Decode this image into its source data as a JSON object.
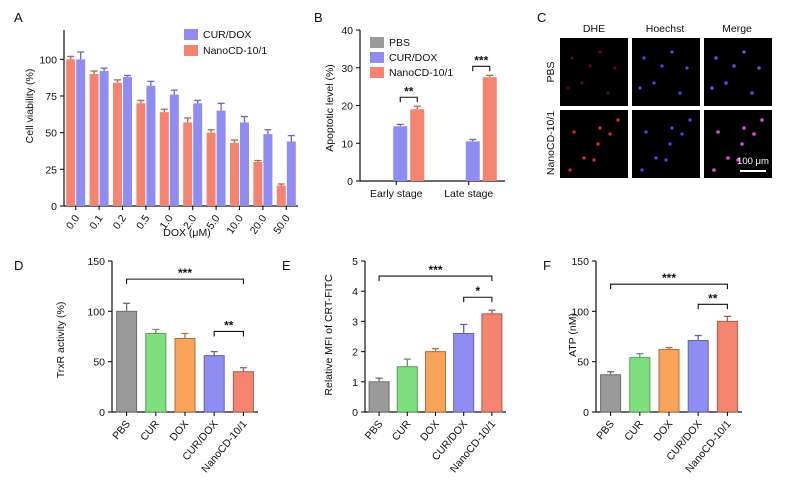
{
  "colors": {
    "purple": "#8f8cf2",
    "salmon": "#f4846f",
    "gray": "#9a9a9a",
    "green": "#7fe07f",
    "orange": "#f8a25a",
    "axis": "#111111"
  },
  "panel_letters": {
    "A": "A",
    "B": "B",
    "C": "C",
    "D": "D",
    "E": "E",
    "F": "F"
  },
  "chart_data": [
    {
      "id": "A",
      "type": "bar",
      "xlabel": "DOX (μM)",
      "ylabel": "Cell viability (%)",
      "ylim": [
        0,
        120
      ],
      "yticks": [
        "0",
        "25",
        "50",
        "75",
        "100"
      ],
      "categories": [
        "0.0",
        "0.1",
        "0.2",
        "0.5",
        "1.0",
        "2.0",
        "5.0",
        "10.0",
        "20.0",
        "50.0"
      ],
      "legend_position": "top-right",
      "series": [
        {
          "name": "CUR/DOX",
          "color_key": "purple",
          "values": [
            100,
            92,
            88,
            82,
            76,
            70,
            65,
            57,
            49,
            44
          ],
          "errors": [
            5,
            2,
            1,
            3,
            3,
            2,
            5,
            4,
            3,
            4
          ]
        },
        {
          "name": "NanoCD-10/1",
          "color_key": "salmon",
          "values": [
            100,
            90,
            84,
            70,
            64,
            57,
            50,
            43,
            30,
            14
          ],
          "errors": [
            2,
            2,
            2,
            2,
            2,
            3,
            2,
            2,
            1,
            1
          ]
        }
      ]
    },
    {
      "id": "B",
      "type": "bar",
      "xlabel": "",
      "ylabel": "Apoptotic level (%)",
      "ylim": [
        0,
        40
      ],
      "yticks": [
        "0",
        "10",
        "20",
        "30",
        "40"
      ],
      "categories": [
        "Early stage",
        "Late stage"
      ],
      "legend_position": "top-left",
      "series": [
        {
          "name": "PBS",
          "color_key": "gray",
          "values": [
            0.1,
            0.1
          ],
          "errors": [
            0,
            0
          ]
        },
        {
          "name": "CUR/DOX",
          "color_key": "purple",
          "values": [
            14.5,
            10.5
          ],
          "errors": [
            0.5,
            0.5
          ]
        },
        {
          "name": "NanoCD-10/1",
          "color_key": "salmon",
          "values": [
            19,
            27.5
          ],
          "errors": [
            0.8,
            0.5
          ]
        }
      ],
      "annotations": [
        "**",
        "***"
      ]
    },
    {
      "id": "D",
      "type": "bar",
      "xlabel": "",
      "ylabel": "TrxR activity (%)",
      "ylim": [
        0,
        150
      ],
      "yticks": [
        "0",
        "50",
        "100",
        "150"
      ],
      "categories": [
        "PBS",
        "CUR",
        "DOX",
        "CUR/DOX",
        "NanoCD-10/1"
      ],
      "series": [
        {
          "name": "",
          "values": [
            100,
            78,
            73,
            56,
            40
          ],
          "errors": [
            8,
            4,
            5,
            4,
            4
          ],
          "color_keys": [
            "gray",
            "green",
            "orange",
            "purple",
            "salmon"
          ]
        }
      ],
      "annotations": [
        "***",
        "**"
      ]
    },
    {
      "id": "E",
      "type": "bar",
      "xlabel": "",
      "ylabel": "Relative MFI of CRT-FITC",
      "ylim": [
        0,
        5
      ],
      "yticks": [
        "0",
        "1",
        "2",
        "3",
        "4",
        "5"
      ],
      "categories": [
        "PBS",
        "CUR",
        "DOX",
        "CUR/DOX",
        "NanoCD-10/1"
      ],
      "series": [
        {
          "name": "",
          "values": [
            1.0,
            1.5,
            2.0,
            2.6,
            3.25
          ],
          "errors": [
            0.12,
            0.25,
            0.1,
            0.3,
            0.12
          ],
          "color_keys": [
            "gray",
            "green",
            "orange",
            "purple",
            "salmon"
          ]
        }
      ],
      "annotations": [
        "***",
        "*"
      ]
    },
    {
      "id": "F",
      "type": "bar",
      "xlabel": "",
      "ylabel": "ATP (nM)",
      "ylim": [
        0,
        150
      ],
      "yticks": [
        "0",
        "50",
        "100",
        "150"
      ],
      "categories": [
        "PBS",
        "CUR",
        "DOX",
        "CUR/DOX",
        "NanoCD-10/1"
      ],
      "series": [
        {
          "name": "",
          "values": [
            37,
            54,
            62,
            71,
            90
          ],
          "errors": [
            3,
            4,
            2,
            5,
            5
          ],
          "color_keys": [
            "gray",
            "green",
            "orange",
            "purple",
            "salmon"
          ]
        }
      ],
      "annotations": [
        "***",
        "**"
      ]
    }
  ],
  "micrographs": {
    "columns": [
      "DHE",
      "Hoechst",
      "Merge"
    ],
    "rows": [
      "PBS",
      "NanoCD-10/1"
    ],
    "scale_bar": "100 μm"
  }
}
